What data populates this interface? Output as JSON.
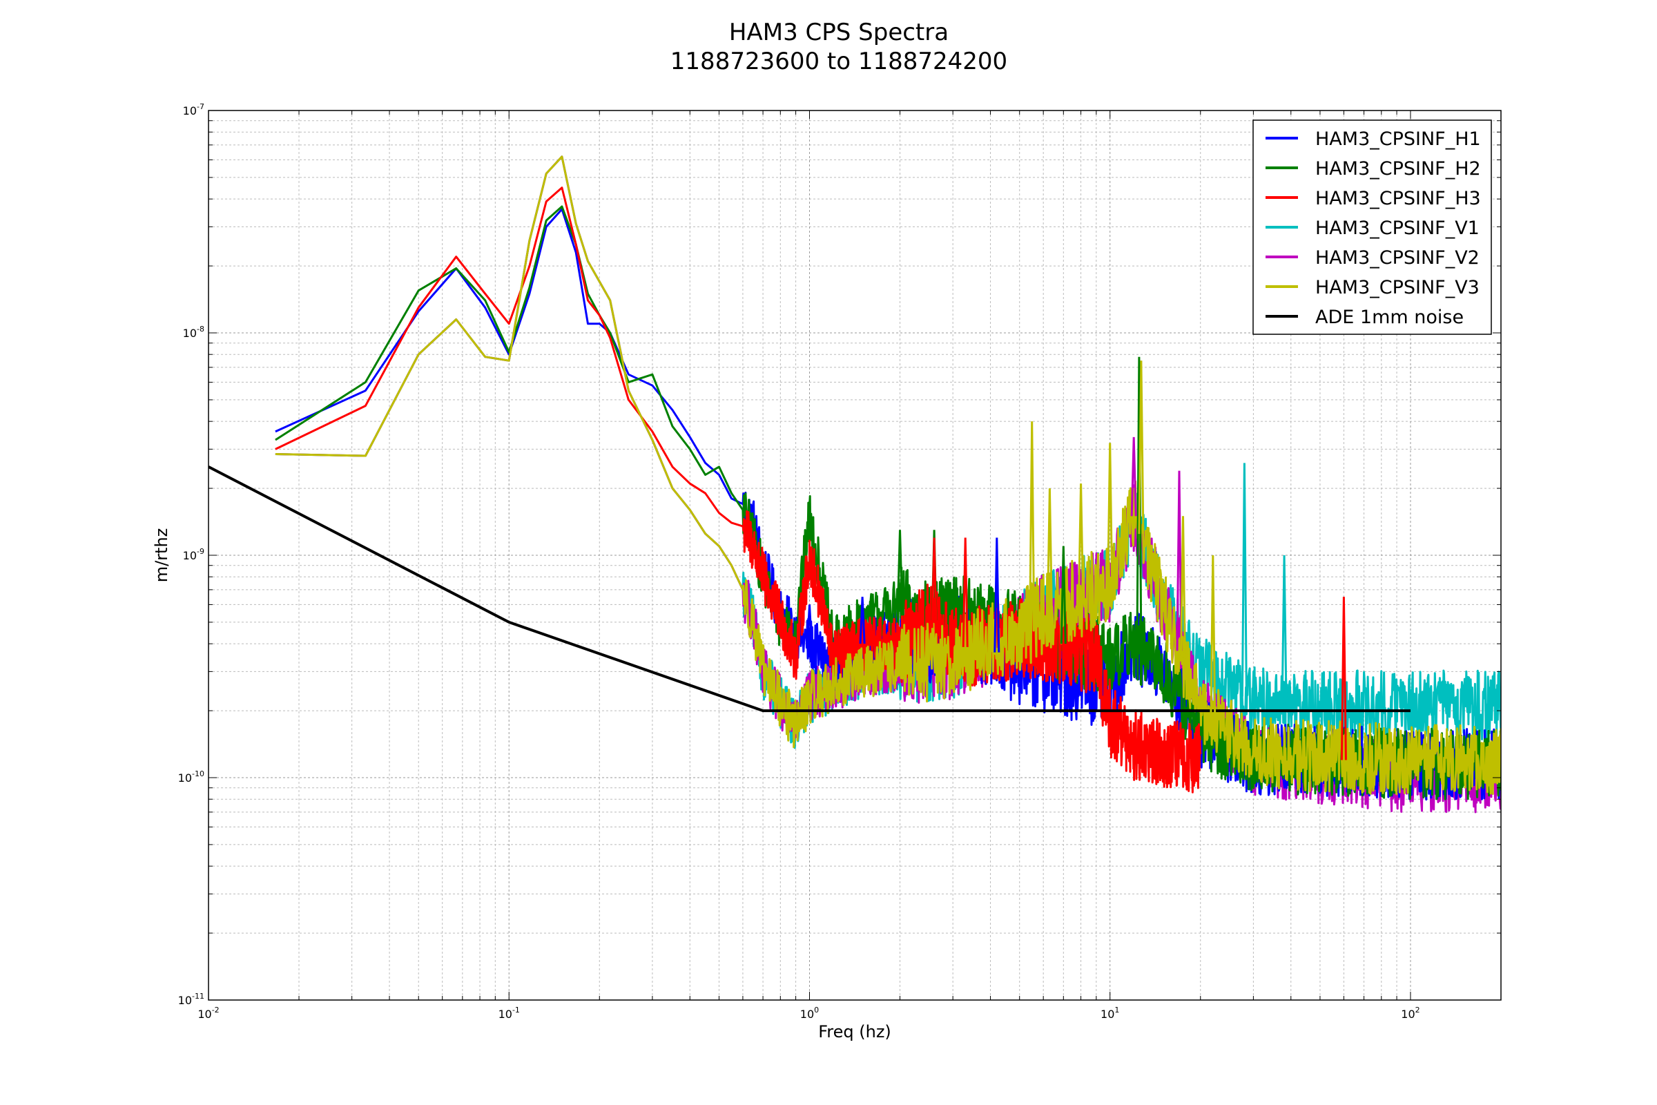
{
  "chart_data": {
    "type": "line",
    "title": "HAM3 CPS Spectra",
    "subtitle": "1188723600 to 1188724200",
    "xlabel": "Freq (hz)",
    "ylabel": "m/rthz",
    "xscale": "log",
    "yscale": "log",
    "xlim": [
      0.01,
      200
    ],
    "ylim": [
      1e-11,
      1e-07
    ],
    "grid": true,
    "legend_position": "top-right",
    "x_ticks": [
      {
        "base": "10",
        "exp": "-2",
        "value": 0.01
      },
      {
        "base": "10",
        "exp": "-1",
        "value": 0.1
      },
      {
        "base": "10",
        "exp": "0",
        "value": 1
      },
      {
        "base": "10",
        "exp": "1",
        "value": 10
      },
      {
        "base": "10",
        "exp": "2",
        "value": 100
      }
    ],
    "y_ticks": [
      {
        "base": "10",
        "exp": "-11",
        "value": 1e-11
      },
      {
        "base": "10",
        "exp": "-10",
        "value": 1e-10
      },
      {
        "base": "10",
        "exp": "-9",
        "value": 1e-09
      },
      {
        "base": "10",
        "exp": "-8",
        "value": 1e-08
      },
      {
        "base": "10",
        "exp": "-7",
        "value": 1e-07
      }
    ],
    "series": [
      {
        "name": "HAM3_CPSINF_H1",
        "color": "#0000ff",
        "points": [
          [
            0.0167,
            3.6e-09
          ],
          [
            0.0333,
            5.5e-09
          ],
          [
            0.05,
            1.25e-08
          ],
          [
            0.0667,
            1.95e-08
          ],
          [
            0.0833,
            1.3e-08
          ],
          [
            0.1,
            8e-09
          ],
          [
            0.117,
            1.5e-08
          ],
          [
            0.133,
            3e-08
          ],
          [
            0.15,
            3.6e-08
          ],
          [
            0.167,
            2.3e-08
          ],
          [
            0.183,
            1.1e-08
          ],
          [
            0.2,
            1.1e-08
          ],
          [
            0.217,
            1e-08
          ],
          [
            0.25,
            6.5e-09
          ],
          [
            0.3,
            5.8e-09
          ],
          [
            0.35,
            4.5e-09
          ],
          [
            0.4,
            3.4e-09
          ],
          [
            0.45,
            2.6e-09
          ],
          [
            0.5,
            2.3e-09
          ],
          [
            0.55,
            1.8e-09
          ],
          [
            0.6,
            1.7e-09
          ],
          [
            0.65,
            1.4e-09
          ],
          [
            0.7,
            9e-10
          ],
          [
            0.8,
            5.5e-10
          ],
          [
            0.9,
            4.5e-10
          ],
          [
            1.0,
            4e-10
          ],
          [
            1.2,
            3.2e-10
          ],
          [
            1.5,
            4e-10
          ],
          [
            2.0,
            4.5e-10
          ],
          [
            2.5,
            4e-10
          ],
          [
            3.0,
            4.5e-10
          ],
          [
            4.0,
            3.8e-10
          ],
          [
            5.0,
            3.2e-10
          ],
          [
            7.0,
            2.8e-10
          ],
          [
            10.0,
            2.5e-10
          ],
          [
            12.0,
            4e-10
          ],
          [
            15.0,
            3e-10
          ],
          [
            20.0,
            1.6e-10
          ],
          [
            30.0,
            1.2e-10
          ],
          [
            50.0,
            1.2e-10
          ],
          [
            100.0,
            1.15e-10
          ],
          [
            200.0,
            1.15e-10
          ]
        ]
      },
      {
        "name": "HAM3_CPSINF_H2",
        "color": "#008000",
        "points": [
          [
            0.0167,
            3.3e-09
          ],
          [
            0.0333,
            6e-09
          ],
          [
            0.05,
            1.55e-08
          ],
          [
            0.0667,
            1.95e-08
          ],
          [
            0.0833,
            1.4e-08
          ],
          [
            0.1,
            8.2e-09
          ],
          [
            0.117,
            1.6e-08
          ],
          [
            0.133,
            3.2e-08
          ],
          [
            0.15,
            3.7e-08
          ],
          [
            0.167,
            2.5e-08
          ],
          [
            0.183,
            1.5e-08
          ],
          [
            0.2,
            1.2e-08
          ],
          [
            0.217,
            1e-08
          ],
          [
            0.25,
            6e-09
          ],
          [
            0.3,
            6.5e-09
          ],
          [
            0.35,
            3.8e-09
          ],
          [
            0.4,
            3e-09
          ],
          [
            0.45,
            2.3e-09
          ],
          [
            0.5,
            2.5e-09
          ],
          [
            0.55,
            1.9e-09
          ],
          [
            0.6,
            1.6e-09
          ],
          [
            0.65,
            1.2e-09
          ],
          [
            0.7,
            8e-10
          ],
          [
            0.8,
            5e-10
          ],
          [
            0.9,
            4.5e-10
          ],
          [
            1.0,
            1.5e-09
          ],
          [
            1.2,
            4e-10
          ],
          [
            1.5,
            5e-10
          ],
          [
            2.0,
            6e-10
          ],
          [
            2.5,
            5e-10
          ],
          [
            3.0,
            5.5e-10
          ],
          [
            4.0,
            5e-10
          ],
          [
            5.0,
            4.5e-10
          ],
          [
            7.0,
            4e-10
          ],
          [
            10.0,
            3.5e-10
          ],
          [
            12.0,
            4e-10
          ],
          [
            15.0,
            3e-10
          ],
          [
            20.0,
            1.6e-10
          ],
          [
            30.0,
            1.2e-10
          ],
          [
            50.0,
            1.2e-10
          ],
          [
            100.0,
            1.15e-10
          ],
          [
            200.0,
            1.15e-10
          ]
        ]
      },
      {
        "name": "HAM3_CPSINF_H3",
        "color": "#ff0000",
        "points": [
          [
            0.0167,
            3e-09
          ],
          [
            0.0333,
            4.7e-09
          ],
          [
            0.05,
            1.3e-08
          ],
          [
            0.0667,
            2.2e-08
          ],
          [
            0.0833,
            1.5e-08
          ],
          [
            0.1,
            1.1e-08
          ],
          [
            0.117,
            2e-08
          ],
          [
            0.133,
            3.9e-08
          ],
          [
            0.15,
            4.5e-08
          ],
          [
            0.167,
            2.5e-08
          ],
          [
            0.183,
            1.4e-08
          ],
          [
            0.2,
            1.2e-08
          ],
          [
            0.217,
            9.5e-09
          ],
          [
            0.25,
            5e-09
          ],
          [
            0.3,
            3.6e-09
          ],
          [
            0.35,
            2.5e-09
          ],
          [
            0.4,
            2.1e-09
          ],
          [
            0.45,
            1.9e-09
          ],
          [
            0.5,
            1.55e-09
          ],
          [
            0.55,
            1.4e-09
          ],
          [
            0.6,
            1.35e-09
          ],
          [
            0.65,
            1.1e-09
          ],
          [
            0.7,
            8e-10
          ],
          [
            0.8,
            5.2e-10
          ],
          [
            0.9,
            3.5e-10
          ],
          [
            1.0,
            1e-09
          ],
          [
            1.2,
            3.5e-10
          ],
          [
            1.5,
            4e-10
          ],
          [
            2.0,
            4e-10
          ],
          [
            2.5,
            5e-10
          ],
          [
            3.0,
            3.8e-10
          ],
          [
            4.0,
            4e-10
          ],
          [
            5.0,
            4.2e-10
          ],
          [
            7.0,
            4e-10
          ],
          [
            9.0,
            3.5e-10
          ],
          [
            10.0,
            1.8e-10
          ],
          [
            12.0,
            1.4e-10
          ],
          [
            15.0,
            1.3e-10
          ],
          [
            20.0,
            1.2e-10
          ]
        ]
      },
      {
        "name": "HAM3_CPSINF_V1",
        "color": "#00bfbf",
        "points": [
          [
            0.0167,
            2.85e-09
          ],
          [
            0.0333,
            2.8e-09
          ],
          [
            0.05,
            8e-09
          ],
          [
            0.0667,
            1.15e-08
          ],
          [
            0.0833,
            7.8e-09
          ],
          [
            0.1,
            7.5e-09
          ],
          [
            0.117,
            2.6e-08
          ],
          [
            0.133,
            5.2e-08
          ],
          [
            0.15,
            6.2e-08
          ],
          [
            0.167,
            3.1e-08
          ],
          [
            0.183,
            2.1e-08
          ],
          [
            0.2,
            1.7e-08
          ],
          [
            0.217,
            1.4e-08
          ],
          [
            0.25,
            5.5e-09
          ],
          [
            0.3,
            3.3e-09
          ],
          [
            0.35,
            2e-09
          ],
          [
            0.4,
            1.6e-09
          ],
          [
            0.45,
            1.25e-09
          ],
          [
            0.5,
            1.1e-09
          ],
          [
            0.55,
            9e-10
          ],
          [
            0.6,
            7e-10
          ],
          [
            0.65,
            5e-10
          ],
          [
            0.7,
            3e-10
          ],
          [
            0.8,
            2.2e-10
          ],
          [
            0.9,
            1.7e-10
          ],
          [
            1.0,
            2.3e-10
          ],
          [
            1.2,
            2.6e-10
          ],
          [
            1.5,
            3e-10
          ],
          [
            2.0,
            3.2e-10
          ],
          [
            3.0,
            3.4e-10
          ],
          [
            4.0,
            4e-10
          ],
          [
            5.0,
            4.5e-10
          ],
          [
            6.0,
            5.5e-10
          ],
          [
            8.0,
            6.5e-10
          ],
          [
            10.0,
            7.5e-10
          ],
          [
            12.0,
            1.5e-09
          ],
          [
            15.0,
            6e-10
          ],
          [
            20.0,
            3e-10
          ],
          [
            30.0,
            2.2e-10
          ],
          [
            50.0,
            2.1e-10
          ],
          [
            100.0,
            2.1e-10
          ],
          [
            200.0,
            2.1e-10
          ]
        ]
      },
      {
        "name": "HAM3_CPSINF_V2",
        "color": "#bf00bf",
        "points": [
          [
            0.0167,
            2.85e-09
          ],
          [
            0.0333,
            2.8e-09
          ],
          [
            0.05,
            8e-09
          ],
          [
            0.0667,
            1.15e-08
          ],
          [
            0.0833,
            7.8e-09
          ],
          [
            0.1,
            7.5e-09
          ],
          [
            0.117,
            2.6e-08
          ],
          [
            0.133,
            5.2e-08
          ],
          [
            0.15,
            6.2e-08
          ],
          [
            0.167,
            3.1e-08
          ],
          [
            0.183,
            2.1e-08
          ],
          [
            0.2,
            1.7e-08
          ],
          [
            0.217,
            1.4e-08
          ],
          [
            0.25,
            5.5e-09
          ],
          [
            0.3,
            3.3e-09
          ],
          [
            0.35,
            2e-09
          ],
          [
            0.4,
            1.6e-09
          ],
          [
            0.45,
            1.25e-09
          ],
          [
            0.5,
            1.1e-09
          ],
          [
            0.55,
            9e-10
          ],
          [
            0.6,
            7e-10
          ],
          [
            0.65,
            5e-10
          ],
          [
            0.7,
            3e-10
          ],
          [
            0.8,
            2.2e-10
          ],
          [
            0.9,
            1.7e-10
          ],
          [
            1.0,
            2.3e-10
          ],
          [
            1.2,
            2.6e-10
          ],
          [
            1.5,
            3e-10
          ],
          [
            2.0,
            3.2e-10
          ],
          [
            3.0,
            3.4e-10
          ],
          [
            4.0,
            4e-10
          ],
          [
            5.0,
            4.5e-10
          ],
          [
            6.0,
            5.5e-10
          ],
          [
            8.0,
            6.5e-10
          ],
          [
            10.0,
            7.5e-10
          ],
          [
            12.0,
            1.5e-09
          ],
          [
            15.0,
            6e-10
          ],
          [
            20.0,
            2e-10
          ],
          [
            30.0,
            1.2e-10
          ],
          [
            50.0,
            1.1e-10
          ],
          [
            100.0,
            1e-10
          ],
          [
            200.0,
            1e-10
          ]
        ]
      },
      {
        "name": "HAM3_CPSINF_V3",
        "color": "#bfbf00",
        "points": [
          [
            0.0167,
            2.85e-09
          ],
          [
            0.0333,
            2.8e-09
          ],
          [
            0.05,
            8e-09
          ],
          [
            0.0667,
            1.15e-08
          ],
          [
            0.0833,
            7.8e-09
          ],
          [
            0.1,
            7.5e-09
          ],
          [
            0.117,
            2.6e-08
          ],
          [
            0.133,
            5.2e-08
          ],
          [
            0.15,
            6.2e-08
          ],
          [
            0.167,
            3.1e-08
          ],
          [
            0.183,
            2.1e-08
          ],
          [
            0.2,
            1.7e-08
          ],
          [
            0.217,
            1.4e-08
          ],
          [
            0.25,
            5.5e-09
          ],
          [
            0.3,
            3.3e-09
          ],
          [
            0.35,
            2e-09
          ],
          [
            0.4,
            1.6e-09
          ],
          [
            0.45,
            1.25e-09
          ],
          [
            0.5,
            1.1e-09
          ],
          [
            0.55,
            9e-10
          ],
          [
            0.6,
            7e-10
          ],
          [
            0.65,
            5e-10
          ],
          [
            0.7,
            3e-10
          ],
          [
            0.8,
            2.2e-10
          ],
          [
            0.9,
            1.7e-10
          ],
          [
            1.0,
            2.3e-10
          ],
          [
            1.2,
            2.6e-10
          ],
          [
            1.5,
            3e-10
          ],
          [
            2.0,
            3.2e-10
          ],
          [
            3.0,
            3.4e-10
          ],
          [
            4.0,
            4e-10
          ],
          [
            5.0,
            4.5e-10
          ],
          [
            6.0,
            5.5e-10
          ],
          [
            8.0,
            6.5e-10
          ],
          [
            10.0,
            7.5e-10
          ],
          [
            12.0,
            1.6e-09
          ],
          [
            15.0,
            6e-10
          ],
          [
            20.0,
            2e-10
          ],
          [
            30.0,
            1.3e-10
          ],
          [
            50.0,
            1.25e-10
          ],
          [
            100.0,
            1.2e-10
          ],
          [
            200.0,
            1.2e-10
          ]
        ]
      },
      {
        "name": "ADE 1mm noise",
        "color": "#000000",
        "points": [
          [
            0.01,
            2.5e-09
          ],
          [
            0.1,
            5e-10
          ],
          [
            0.7,
            2e-10
          ],
          [
            100.0,
            2e-10
          ]
        ]
      }
    ],
    "spikes": [
      {
        "series": 0,
        "x": 1.0,
        "y": 6e-10
      },
      {
        "series": 0,
        "x": 1.5,
        "y": 6.5e-10
      },
      {
        "series": 0,
        "x": 4.2,
        "y": 1.2e-09
      },
      {
        "series": 1,
        "x": 2.0,
        "y": 1.3e-09
      },
      {
        "series": 1,
        "x": 2.6,
        "y": 1.3e-09
      },
      {
        "series": 1,
        "x": 7.0,
        "y": 1.1e-09
      },
      {
        "series": 1,
        "x": 12.5,
        "y": 7.8e-09
      },
      {
        "series": 2,
        "x": 2.6,
        "y": 1.2e-09
      },
      {
        "series": 2,
        "x": 3.3,
        "y": 1.2e-09
      },
      {
        "series": 2,
        "x": 60.0,
        "y": 6.5e-10
      },
      {
        "series": 3,
        "x": 28.0,
        "y": 2.6e-09
      },
      {
        "series": 3,
        "x": 38.0,
        "y": 1e-09
      },
      {
        "series": 4,
        "x": 12.0,
        "y": 3.4e-09
      },
      {
        "series": 4,
        "x": 17.0,
        "y": 2.4e-09
      },
      {
        "series": 5,
        "x": 5.5,
        "y": 4e-09
      },
      {
        "series": 5,
        "x": 6.3,
        "y": 2e-09
      },
      {
        "series": 5,
        "x": 8.0,
        "y": 2.1e-09
      },
      {
        "series": 5,
        "x": 10.0,
        "y": 3.2e-09
      },
      {
        "series": 5,
        "x": 12.7,
        "y": 7.5e-09
      },
      {
        "series": 5,
        "x": 17.5,
        "y": 1.5e-09
      },
      {
        "series": 5,
        "x": 22.0,
        "y": 1e-09
      }
    ]
  }
}
